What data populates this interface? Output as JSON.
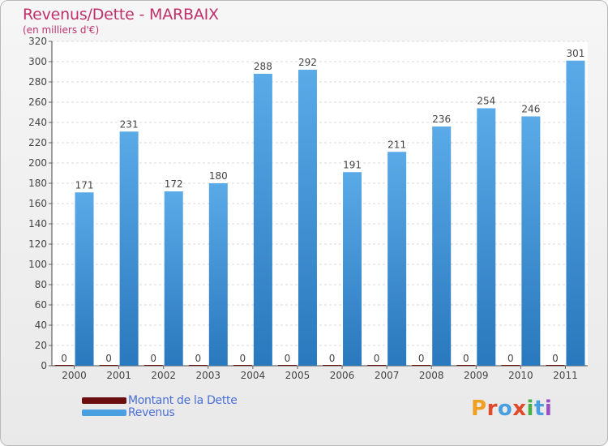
{
  "header": {
    "title": "Revenus/Dette - MARBAIX",
    "subtitle": "(en milliers d'€)"
  },
  "chart_data": {
    "type": "bar",
    "categories": [
      "2000",
      "2001",
      "2002",
      "2003",
      "2004",
      "2005",
      "2006",
      "2007",
      "2008",
      "2009",
      "2010",
      "2011"
    ],
    "series": [
      {
        "name": "Montant de la Dette",
        "color": "#6b0e10",
        "values": [
          0,
          0,
          0,
          0,
          0,
          0,
          0,
          0,
          0,
          0,
          0,
          0
        ]
      },
      {
        "name": "Revenus",
        "color": "#4a9fe0",
        "values": [
          171,
          231,
          172,
          180,
          288,
          292,
          191,
          211,
          236,
          254,
          246,
          301
        ]
      }
    ],
    "title": "Revenus/Dette - MARBAIX",
    "subtitle": "(en milliers d'€)",
    "ylim": [
      0,
      320
    ],
    "yticks": [
      0,
      20,
      40,
      60,
      80,
      100,
      120,
      140,
      160,
      180,
      200,
      220,
      240,
      260,
      280,
      300,
      320
    ],
    "grid": true,
    "legend_position": "bottom-left",
    "show_data_labels": true
  },
  "legend": {
    "items": [
      {
        "label": "Montant de la Dette",
        "color": "#6b0e10"
      },
      {
        "label": "Revenus",
        "color": "#4a9fe0"
      }
    ]
  },
  "logo": {
    "text": "Proxiti",
    "letter_colors": [
      "#f0a020",
      "#e04a2a",
      "#4a9fe0",
      "#e04a2a",
      "#48b048",
      "#4a9fe0",
      "#9a4ec0"
    ]
  }
}
